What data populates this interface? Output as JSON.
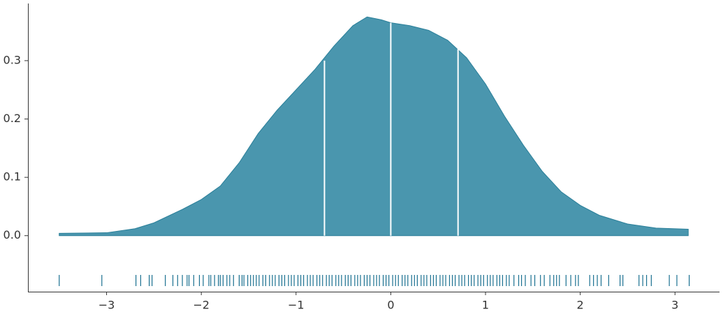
{
  "chart_data": {
    "type": "kde",
    "x": [
      -3.5,
      -3.0,
      -2.7,
      -2.5,
      -2.2,
      -2.0,
      -1.8,
      -1.6,
      -1.4,
      -1.2,
      -1.0,
      -0.8,
      -0.6,
      -0.4,
      -0.25,
      -0.1,
      0.0,
      0.2,
      0.4,
      0.6,
      0.8,
      1.0,
      1.2,
      1.4,
      1.6,
      1.8,
      2.0,
      2.2,
      2.5,
      2.8,
      3.14
    ],
    "values": [
      0.004,
      0.005,
      0.012,
      0.022,
      0.045,
      0.062,
      0.085,
      0.125,
      0.175,
      0.215,
      0.25,
      0.285,
      0.325,
      0.36,
      0.375,
      0.37,
      0.365,
      0.36,
      0.352,
      0.335,
      0.305,
      0.26,
      0.205,
      0.155,
      0.11,
      0.075,
      0.052,
      0.035,
      0.02,
      0.013,
      0.011
    ],
    "color": "#4a96ae",
    "edge_color": "#2a7f99",
    "quartiles": {
      "x": [
        -0.7,
        0.0,
        0.71
      ],
      "values": [
        0.3,
        0.365,
        0.32
      ],
      "color": "#ffffff"
    },
    "rug": [
      -3.5,
      -3.05,
      -2.69,
      -2.64,
      -2.55,
      -2.52,
      -2.38,
      -2.3,
      -2.25,
      -2.2,
      -2.15,
      -2.13,
      -2.08,
      -2.02,
      -1.98,
      -1.92,
      -1.9,
      -1.86,
      -1.82,
      -1.8,
      -1.77,
      -1.73,
      -1.7,
      -1.66,
      -1.6,
      -1.57,
      -1.55,
      -1.51,
      -1.48,
      -1.45,
      -1.42,
      -1.39,
      -1.35,
      -1.32,
      -1.28,
      -1.25,
      -1.22,
      -1.18,
      -1.15,
      -1.12,
      -1.08,
      -1.05,
      -1.02,
      -0.98,
      -0.95,
      -0.92,
      -0.88,
      -0.85,
      -0.82,
      -0.78,
      -0.75,
      -0.72,
      -0.68,
      -0.65,
      -0.62,
      -0.58,
      -0.55,
      -0.52,
      -0.48,
      -0.45,
      -0.42,
      -0.38,
      -0.35,
      -0.32,
      -0.28,
      -0.25,
      -0.22,
      -0.18,
      -0.15,
      -0.12,
      -0.08,
      -0.05,
      -0.02,
      0.02,
      0.05,
      0.08,
      0.12,
      0.15,
      0.18,
      0.22,
      0.25,
      0.28,
      0.32,
      0.35,
      0.38,
      0.42,
      0.45,
      0.48,
      0.52,
      0.55,
      0.58,
      0.62,
      0.65,
      0.68,
      0.72,
      0.75,
      0.78,
      0.82,
      0.85,
      0.88,
      0.92,
      0.95,
      0.98,
      1.02,
      1.05,
      1.08,
      1.12,
      1.15,
      1.18,
      1.22,
      1.25,
      1.3,
      1.35,
      1.38,
      1.42,
      1.48,
      1.52,
      1.58,
      1.62,
      1.68,
      1.72,
      1.75,
      1.78,
      1.85,
      1.9,
      1.95,
      1.98,
      2.1,
      2.14,
      2.18,
      2.22,
      2.3,
      2.42,
      2.45,
      2.62,
      2.66,
      2.7,
      2.75,
      2.94,
      3.02,
      3.15
    ],
    "rug_color": "#1a7090",
    "xlim": [
      -3.83,
      3.47
    ],
    "ylim": [
      -0.096,
      0.398
    ],
    "xticks": [
      {
        "value": -3,
        "label": "−3"
      },
      {
        "value": -2,
        "label": "−2"
      },
      {
        "value": -1,
        "label": "−1"
      },
      0,
      1,
      2,
      3
    ],
    "yticks": [
      {
        "value": 0,
        "label": "0.0"
      },
      0.1,
      0.2,
      0.3
    ]
  }
}
